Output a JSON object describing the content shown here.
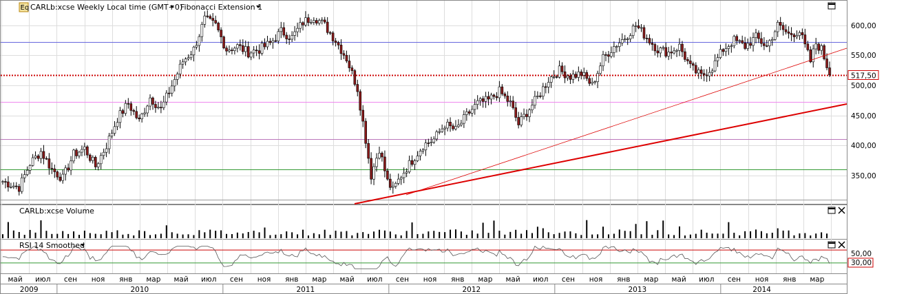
{
  "header": {
    "symbol_title": "CARLb:xcse Weekly Local time (GMT+0)",
    "study_title": "Fibonacci Extension 1",
    "logo_text": "Eq"
  },
  "volume_panel": {
    "title": "CARLb:xcse Volume"
  },
  "rsi_panel": {
    "title": "RSI 14 Smoothed",
    "levels": [
      70,
      30
    ],
    "tick_label": "50,00",
    "marker_label": "30,00"
  },
  "colors": {
    "up": "#ffffff",
    "down": "#8b1a1a",
    "trend": "#dd0000",
    "grid": "#dddddd"
  },
  "chart_data": {
    "type": "candlestick",
    "price_axis": {
      "ticks": [
        "600,00",
        "550,00",
        "500,00",
        "450,00",
        "400,00",
        "350,00"
      ],
      "tick_values": [
        600,
        550,
        500,
        450,
        400,
        350
      ],
      "range": [
        305,
        640
      ]
    },
    "last_price_label": "517,50",
    "last_price": 517.5,
    "horizontal_levels": [
      {
        "price": 572,
        "color": "#6666dd"
      },
      {
        "price": 472,
        "color": "#ee88ee"
      },
      {
        "price": 410,
        "color": "#bb77bb"
      },
      {
        "price": 360,
        "color": "#339933"
      },
      {
        "price": 310,
        "color": "#999999"
      }
    ],
    "time_axis": {
      "months": [
        "май",
        "июл",
        "сен",
        "ноя",
        "янв",
        "мар",
        "май",
        "июл",
        "сен",
        "ноя",
        "янв",
        "мар",
        "май",
        "июл",
        "сен",
        "ноя",
        "янв",
        "мар",
        "май",
        "июл",
        "сен",
        "ноя",
        "янв",
        "мар",
        "май",
        "июл",
        "сен",
        "ноя",
        "янв",
        "мар"
      ],
      "years": [
        "2009",
        "2010",
        "2011",
        "2012",
        "2013",
        "2014"
      ]
    },
    "price_anchors": [
      [
        0,
        340
      ],
      [
        6,
        330
      ],
      [
        10,
        370
      ],
      [
        14,
        390
      ],
      [
        18,
        360
      ],
      [
        22,
        345
      ],
      [
        26,
        385
      ],
      [
        30,
        395
      ],
      [
        34,
        365
      ],
      [
        38,
        400
      ],
      [
        42,
        445
      ],
      [
        46,
        470
      ],
      [
        50,
        440
      ],
      [
        54,
        480
      ],
      [
        58,
        460
      ],
      [
        62,
        500
      ],
      [
        66,
        540
      ],
      [
        70,
        560
      ],
      [
        74,
        610
      ],
      [
        78,
        600
      ],
      [
        82,
        560
      ],
      [
        86,
        565
      ],
      [
        90,
        555
      ],
      [
        94,
        560
      ],
      [
        98,
        570
      ],
      [
        102,
        590
      ],
      [
        106,
        580
      ],
      [
        110,
        605
      ],
      [
        114,
        615
      ],
      [
        118,
        600
      ],
      [
        122,
        575
      ],
      [
        126,
        545
      ],
      [
        130,
        495
      ],
      [
        133,
        410
      ],
      [
        135,
        350
      ],
      [
        138,
        395
      ],
      [
        141,
        340
      ],
      [
        143,
        325
      ],
      [
        146,
        350
      ],
      [
        150,
        375
      ],
      [
        154,
        400
      ],
      [
        158,
        410
      ],
      [
        162,
        435
      ],
      [
        166,
        425
      ],
      [
        170,
        450
      ],
      [
        174,
        470
      ],
      [
        178,
        475
      ],
      [
        182,
        490
      ],
      [
        186,
        470
      ],
      [
        189,
        435
      ],
      [
        192,
        455
      ],
      [
        196,
        480
      ],
      [
        200,
        510
      ],
      [
        204,
        525
      ],
      [
        208,
        515
      ],
      [
        212,
        520
      ],
      [
        216,
        500
      ],
      [
        220,
        545
      ],
      [
        224,
        565
      ],
      [
        228,
        580
      ],
      [
        232,
        600
      ],
      [
        236,
        580
      ],
      [
        240,
        560
      ],
      [
        244,
        555
      ],
      [
        248,
        565
      ],
      [
        252,
        530
      ],
      [
        256,
        515
      ],
      [
        260,
        530
      ],
      [
        264,
        560
      ],
      [
        268,
        575
      ],
      [
        272,
        565
      ],
      [
        276,
        580
      ],
      [
        280,
        565
      ],
      [
        284,
        600
      ],
      [
        288,
        585
      ],
      [
        292,
        590
      ],
      [
        296,
        540
      ],
      [
        298,
        570
      ],
      [
        300,
        560
      ],
      [
        303,
        520
      ]
    ]
  }
}
